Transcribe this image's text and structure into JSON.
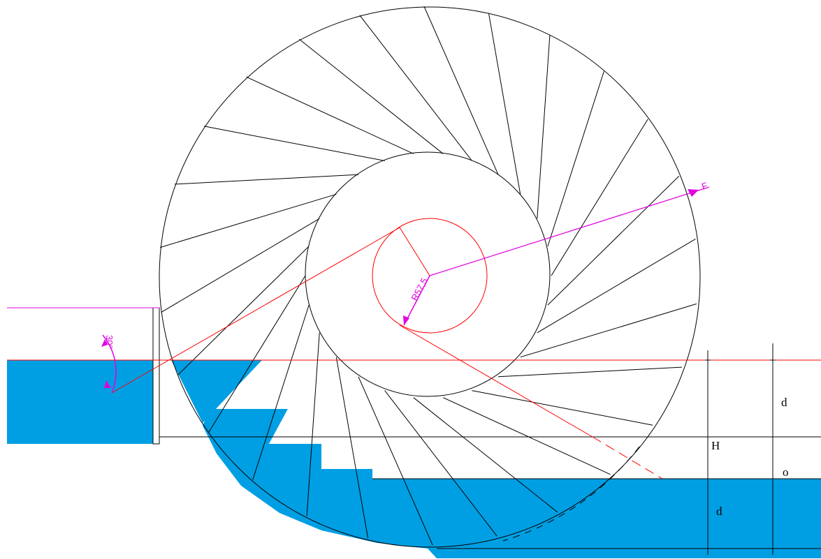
{
  "labels": {
    "upstream_depth": "d",
    "head": "H",
    "drop": "o",
    "downstream_depth": "d",
    "radius": "R57,5",
    "angle": "30°",
    "force": "F"
  },
  "wheel": {
    "blade_count": 26
  },
  "colors": {
    "water": "#009fe3",
    "outline": "#000000",
    "construction": "#ff0000",
    "dimension": "#e000e0"
  }
}
